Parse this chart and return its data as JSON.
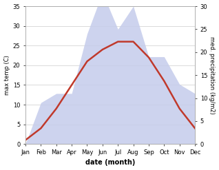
{
  "months": [
    "Jan",
    "Feb",
    "Mar",
    "Apr",
    "May",
    "Jun",
    "Jul",
    "Aug",
    "Sep",
    "Oct",
    "Nov",
    "Dec"
  ],
  "month_positions": [
    0,
    1,
    2,
    3,
    4,
    5,
    6,
    7,
    8,
    9,
    10,
    11
  ],
  "temperature": [
    1,
    4,
    9,
    15,
    21,
    24,
    26,
    26,
    22,
    16,
    9,
    4
  ],
  "precipitation": [
    0,
    9,
    11,
    11,
    24,
    33,
    25,
    30,
    19,
    19,
    13,
    11
  ],
  "temp_color": "#c0392b",
  "precip_fill_color": "#c5cceb",
  "precip_fill_alpha": 0.85,
  "temp_ylim": [
    0,
    35
  ],
  "precip_ylim": [
    0,
    30
  ],
  "temp_yticks": [
    0,
    5,
    10,
    15,
    20,
    25,
    30,
    35
  ],
  "precip_yticks": [
    0,
    5,
    10,
    15,
    20,
    25,
    30
  ],
  "xlabel": "date (month)",
  "ylabel_left": "max temp (C)",
  "ylabel_right": "med. precipitation (kg/m2)",
  "background_color": "#ffffff",
  "grid_color": "#cccccc",
  "spine_color": "#aaaaaa",
  "temp_linewidth": 1.8,
  "label_fontsize": 6,
  "xlabel_fontsize": 7
}
